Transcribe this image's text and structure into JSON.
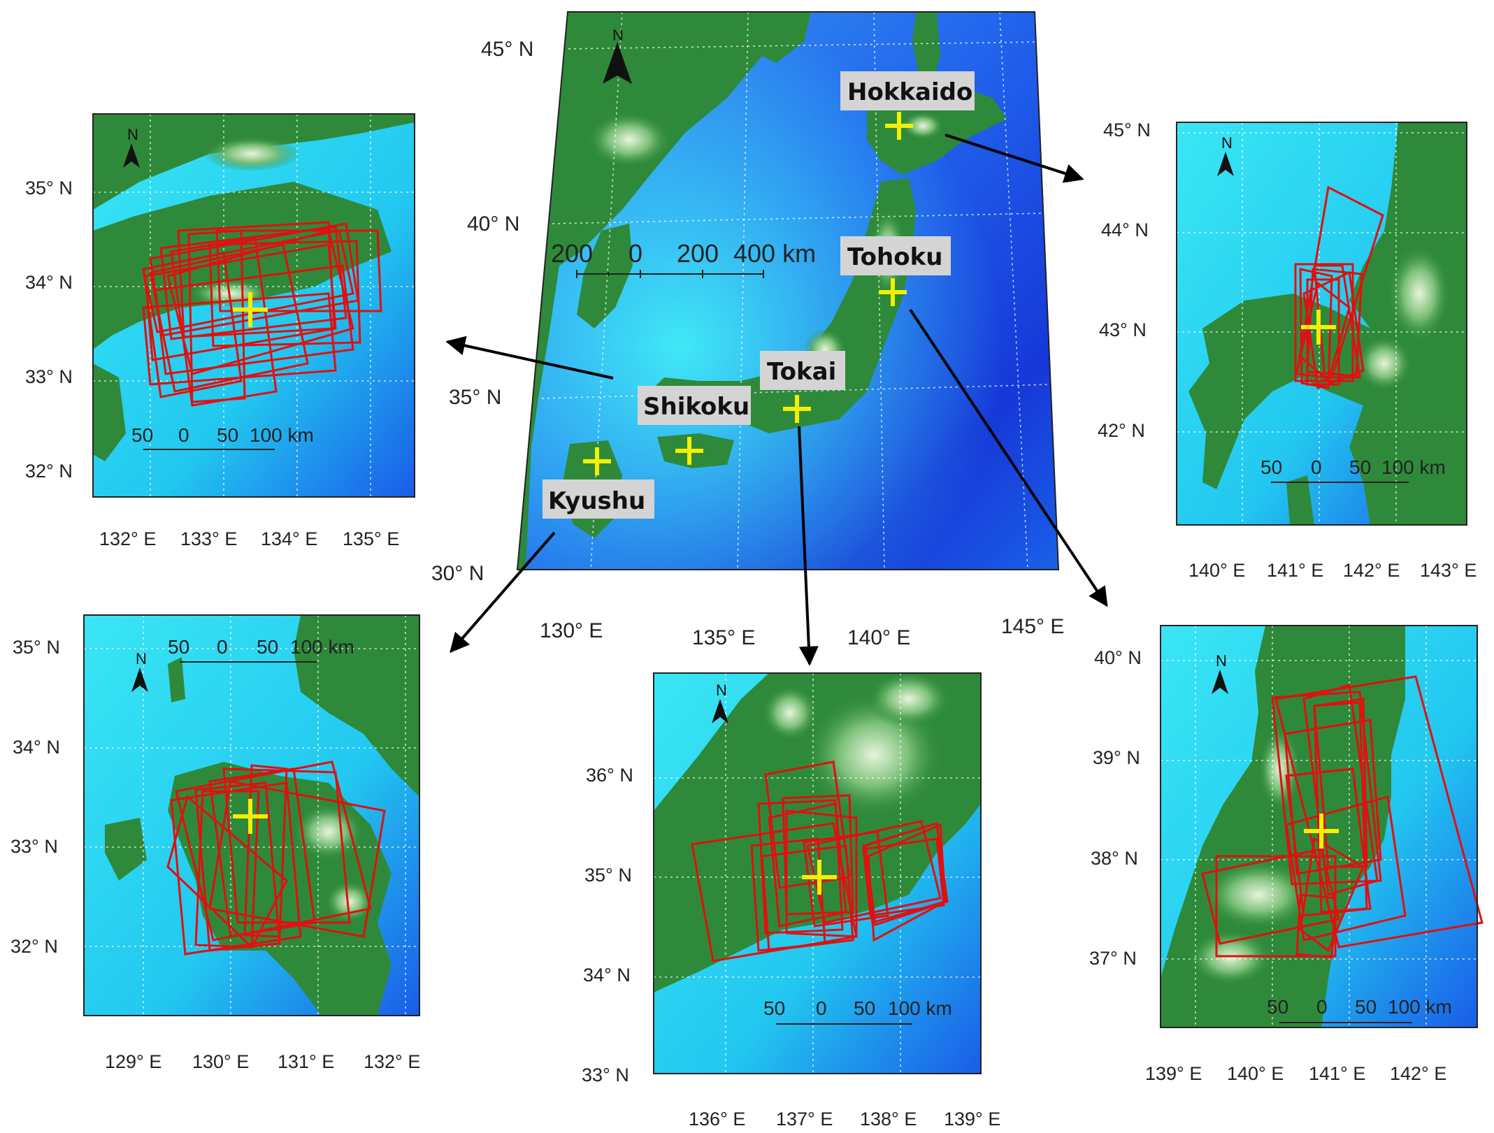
{
  "main_map": {
    "lat_labels": [
      "45° N",
      "40° N",
      "35° N",
      "30° N"
    ],
    "lon_labels": [
      "130° E",
      "135° E",
      "140° E",
      "145° E"
    ],
    "scale_labels": [
      "200",
      "0",
      "200",
      "400 km"
    ],
    "north": "N",
    "regions": [
      {
        "name": "Hokkaido"
      },
      {
        "name": "Tohoku"
      },
      {
        "name": "Tokai"
      },
      {
        "name": "Shikoku"
      },
      {
        "name": "Kyushu"
      }
    ]
  },
  "insets": {
    "shikoku": {
      "lat_labels": [
        "35° N",
        "34° N",
        "33° N",
        "32° N"
      ],
      "lon_labels": [
        "132° E",
        "133° E",
        "134° E",
        "135° E"
      ],
      "scale_labels": [
        "50",
        "0",
        "50",
        "100 km"
      ],
      "north": "N"
    },
    "hokkaido": {
      "lat_labels": [
        "45° N",
        "44° N",
        "43° N",
        "42° N"
      ],
      "lon_labels": [
        "140° E",
        "141° E",
        "142° E",
        "143° E"
      ],
      "scale_labels": [
        "50",
        "0",
        "50",
        "100 km"
      ],
      "north": "N"
    },
    "kyushu": {
      "lat_labels": [
        "35° N",
        "34° N",
        "33° N",
        "32° N"
      ],
      "lon_labels": [
        "129° E",
        "130° E",
        "131° E",
        "132° E"
      ],
      "scale_labels": [
        "50",
        "0",
        "50",
        "100 km"
      ],
      "north": "N"
    },
    "tokai": {
      "lat_labels": [
        "36° N",
        "35° N",
        "34° N",
        "33° N"
      ],
      "lon_labels": [
        "136° E",
        "137° E",
        "138° E",
        "139° E"
      ],
      "scale_labels": [
        "50",
        "0",
        "50",
        "100 km"
      ],
      "north": "N"
    },
    "tohoku": {
      "lat_labels": [
        "40° N",
        "39° N",
        "38° N",
        "37° N"
      ],
      "lon_labels": [
        "139° E",
        "140° E",
        "141° E",
        "142° E"
      ],
      "scale_labels": [
        "50",
        "0",
        "50",
        "100 km"
      ],
      "north": "N"
    }
  },
  "colors": {
    "land": "#2e8a3a",
    "highland": "#cfe7c4",
    "sea_shallow": "#22e0f0",
    "sea_deep": "#1540e0",
    "footprint": "#e01010",
    "site_marker": "#f4f000"
  }
}
